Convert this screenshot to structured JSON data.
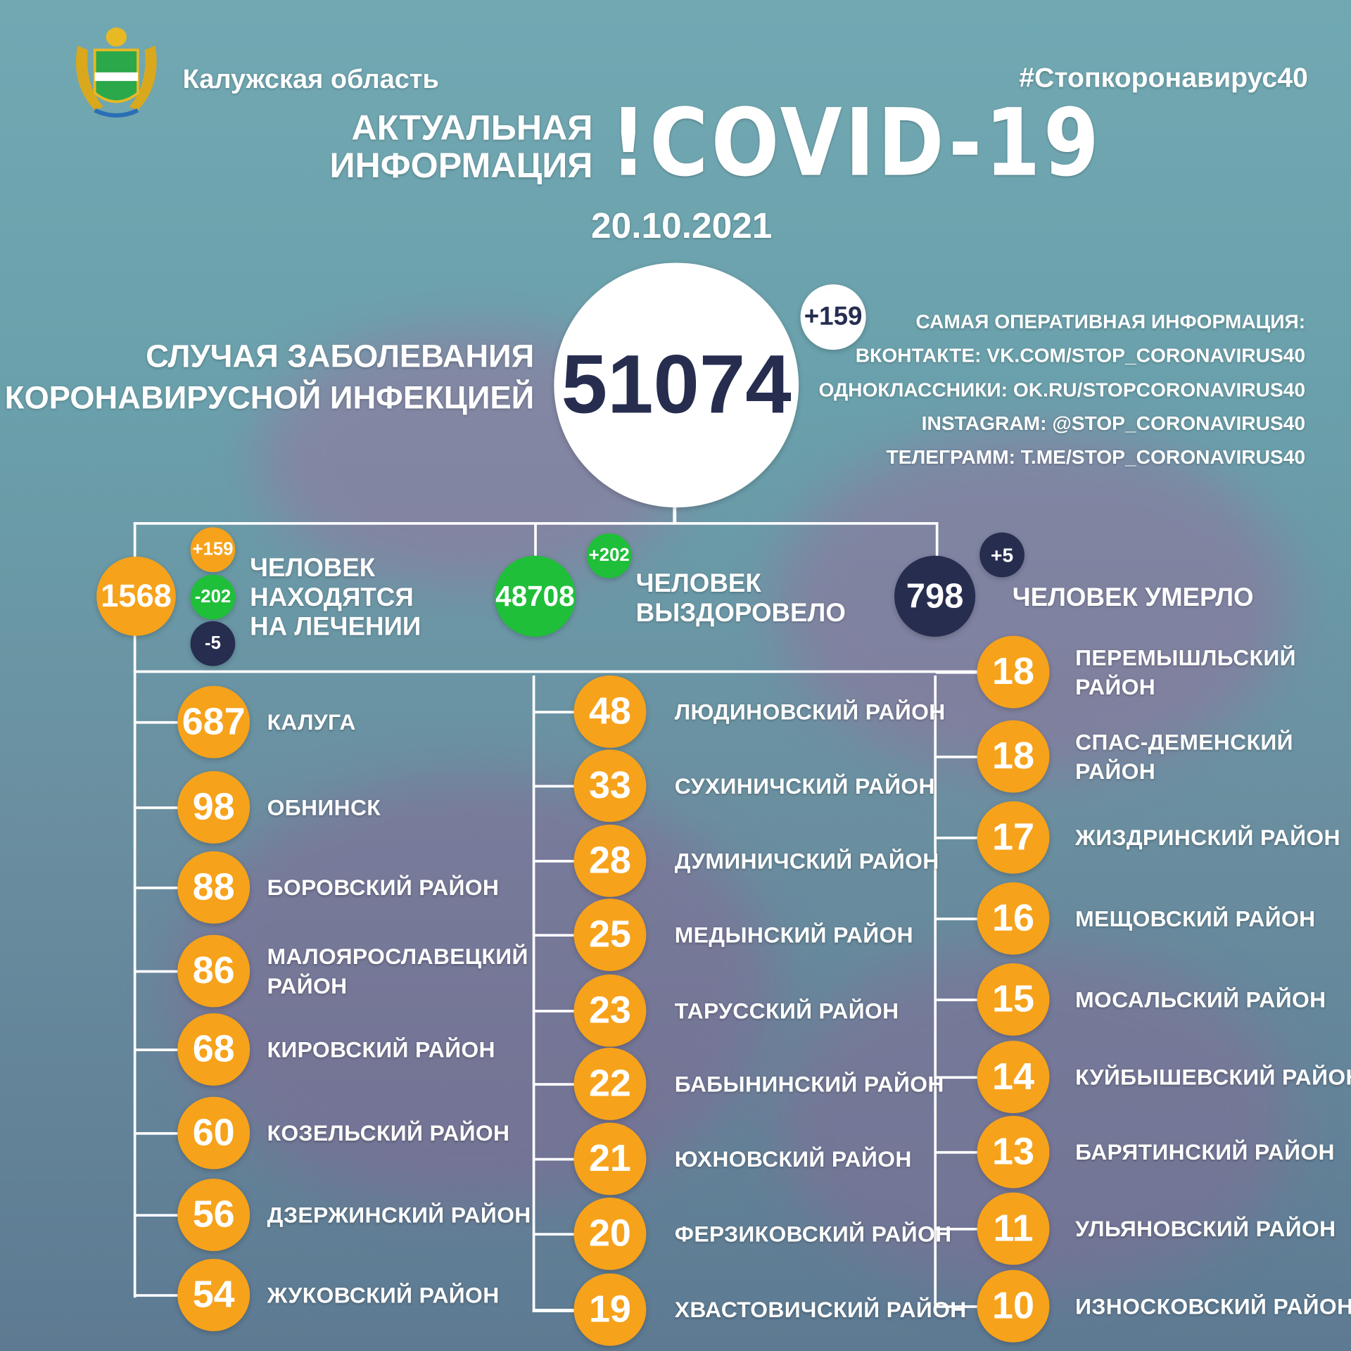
{
  "header": {
    "region": "Калужская область",
    "hashtag": "#Стопкоронавирус40",
    "title_line1": "АКТУАЛЬНАЯ",
    "title_line2": "ИНФОРМАЦИЯ",
    "title_main": "!COVID-19",
    "date": "20.10.2021"
  },
  "total": {
    "label_line1": "СЛУЧАЯ ЗАБОЛЕВАНИЯ",
    "label_line2": "КОРОНАВИРУСНОЙ ИНФЕКЦИЕЙ",
    "value": "51074",
    "delta": "+159"
  },
  "contacts": {
    "heading": "САМАЯ ОПЕРАТИВНАЯ ИНФОРМАЦИЯ:",
    "vk": "ВКОНТАКТЕ: VK.COM/STOP_CORONAVIRUS40",
    "ok": "ОДНОКЛАССНИКИ: OK.RU/STOPCORONAVIRUS40",
    "instagram": "INSTAGRAM: @STOP_CORONAVIRUS40",
    "telegram": "ТЕЛЕГРАММ: T.ME/STOP_CORONAVIRUS40"
  },
  "treatment": {
    "value": "1568",
    "plus": "+159",
    "minus_recovered": "-202",
    "minus_died": "-5",
    "line1": "ЧЕЛОВЕК",
    "line2": "НАХОДЯТСЯ",
    "line3": "НА ЛЕЧЕНИИ"
  },
  "recovered": {
    "value": "48708",
    "delta": "+202",
    "line1": "ЧЕЛОВЕК",
    "line2": "ВЫЗДОРОВЕЛО"
  },
  "died": {
    "value": "798",
    "delta": "+5",
    "label": "ЧЕЛОВЕК УМЕРЛО"
  },
  "colors": {
    "orange": "#f7a21b",
    "green": "#1fbf3a",
    "navy": "#262d4f"
  },
  "districts": {
    "left": [
      [
        "687",
        "КАЛУГА"
      ],
      [
        "98",
        "ОБНИНСК"
      ],
      [
        "88",
        "БОРОВСКИЙ РАЙОН"
      ],
      [
        "86",
        "МАЛОЯРОСЛАВЕЦКИЙ\nРАЙОН"
      ],
      [
        "68",
        "КИРОВСКИЙ РАЙОН"
      ],
      [
        "60",
        "КОЗЕЛЬСКИЙ РАЙОН"
      ],
      [
        "56",
        "ДЗЕРЖИНСКИЙ РАЙОН"
      ],
      [
        "54",
        "ЖУКОВСКИЙ РАЙОН"
      ]
    ],
    "middle": [
      [
        "48",
        "ЛЮДИНОВСКИЙ РАЙОН"
      ],
      [
        "33",
        "СУХИНИЧСКИЙ РАЙОН"
      ],
      [
        "28",
        "ДУМИНИЧСКИЙ РАЙОН"
      ],
      [
        "25",
        "МЕДЫНСКИЙ РАЙОН"
      ],
      [
        "23",
        "ТАРУССКИЙ РАЙОН"
      ],
      [
        "22",
        "БАБЫНИНСКИЙ РАЙОН"
      ],
      [
        "21",
        "ЮХНОВСКИЙ РАЙОН"
      ],
      [
        "20",
        "ФЕРЗИКОВСКИЙ РАЙОН"
      ],
      [
        "19",
        "ХВАСТОВИЧСКИЙ РАЙОН"
      ]
    ],
    "right": [
      [
        "18",
        "ПЕРЕМЫШЛЬСКИЙ\nРАЙОН"
      ],
      [
        "18",
        "СПАС-ДЕМЕНСКИЙ\nРАЙОН"
      ],
      [
        "17",
        "ЖИЗДРИНСКИЙ РАЙОН"
      ],
      [
        "16",
        "МЕЩОВСКИЙ РАЙОН"
      ],
      [
        "15",
        "МОСАЛЬСКИЙ РАЙОН"
      ],
      [
        "14",
        "КУЙБЫШЕВСКИЙ РАЙОН"
      ],
      [
        "13",
        "БАРЯТИНСКИЙ РАЙОН"
      ],
      [
        "11",
        "УЛЬЯНОВСКИЙ РАЙОН"
      ],
      [
        "10",
        "ИЗНОСКОВСКИЙ РАЙОН"
      ]
    ]
  }
}
